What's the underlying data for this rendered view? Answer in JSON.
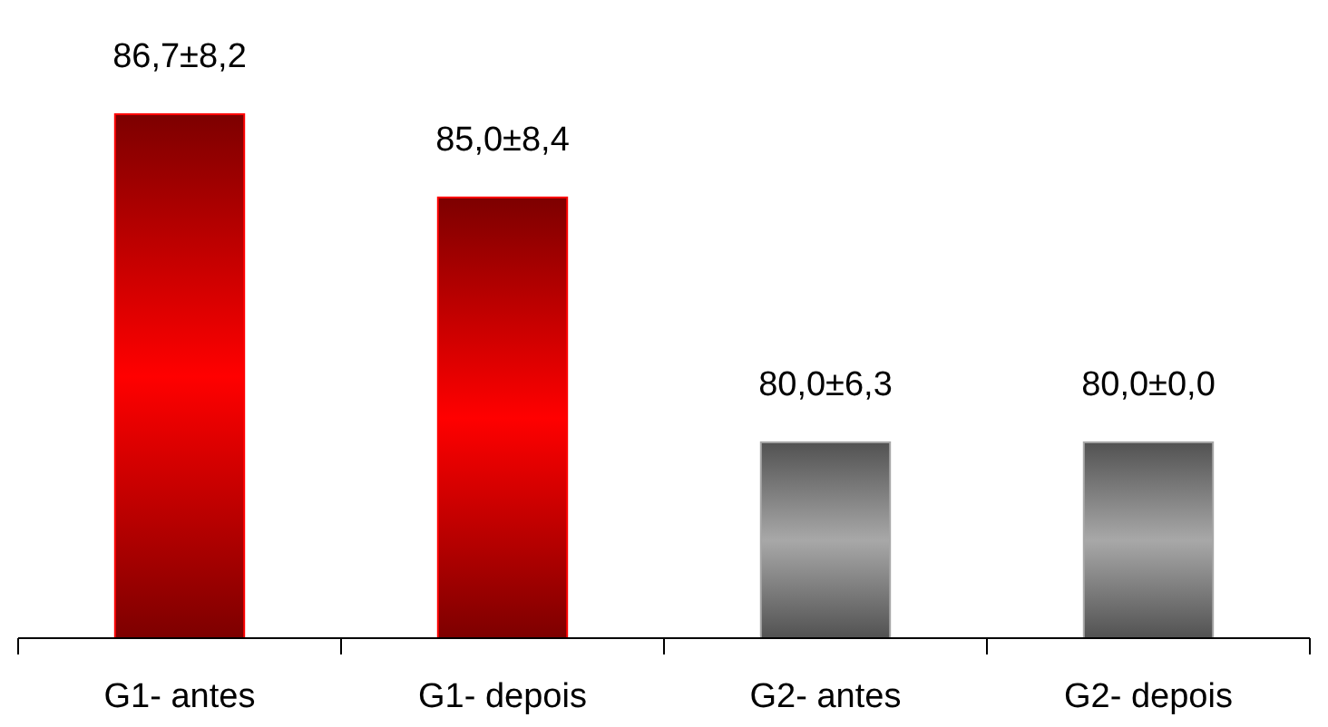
{
  "chart_data": {
    "type": "bar",
    "categories": [
      "G1- antes",
      "G1- depois",
      "G2- antes",
      "G2- depois"
    ],
    "values": [
      86.7,
      85.0,
      80.0,
      80.0
    ],
    "value_labels": [
      "86,7±8,2",
      "85,0±8,4",
      "80,0±6,3",
      "80,0±0,0"
    ],
    "colors": [
      "#ff0000",
      "#ff0000",
      "#a8a8a8",
      "#a8a8a8"
    ],
    "ylim": [
      76,
      86.7
    ],
    "tick_labels": "x"
  }
}
